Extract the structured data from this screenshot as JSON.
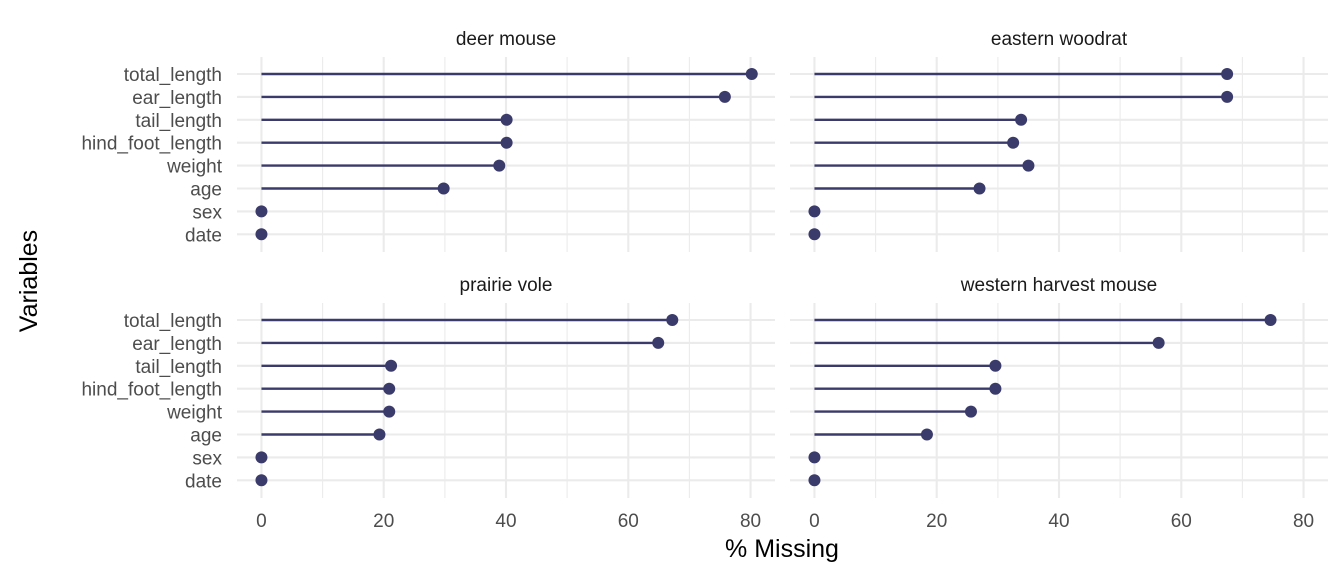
{
  "chart_data": {
    "type": "lollipop",
    "facets": [
      "deer mouse",
      "eastern woodrat",
      "prairie vole",
      "western harvest mouse"
    ],
    "variables": [
      "total_length",
      "ear_length",
      "tail_length",
      "hind_foot_length",
      "weight",
      "age",
      "sex",
      "date"
    ],
    "series": [
      {
        "facet": "deer mouse",
        "values": [
          80.2,
          75.8,
          40.1,
          40.1,
          38.9,
          29.8,
          0,
          0
        ]
      },
      {
        "facet": "eastern woodrat",
        "values": [
          67.5,
          67.5,
          33.8,
          32.5,
          35.0,
          27.0,
          0,
          0
        ]
      },
      {
        "facet": "prairie vole",
        "values": [
          67.2,
          64.9,
          21.2,
          20.9,
          20.9,
          19.3,
          0,
          0
        ]
      },
      {
        "facet": "western harvest mouse",
        "values": [
          74.6,
          56.3,
          29.6,
          29.6,
          25.6,
          18.4,
          0,
          0
        ]
      }
    ],
    "xlim": [
      -4,
      84
    ],
    "x_ticks": [
      0,
      20,
      40,
      60,
      80
    ],
    "x_tick_labels": [
      "0",
      "20",
      "40",
      "60",
      "80"
    ],
    "xlabel": "% Missing",
    "ylabel": "Variables",
    "grid": true,
    "legend": "none",
    "colors": {
      "mark": "#3b3b6b",
      "grid": "#ebebeb"
    }
  }
}
